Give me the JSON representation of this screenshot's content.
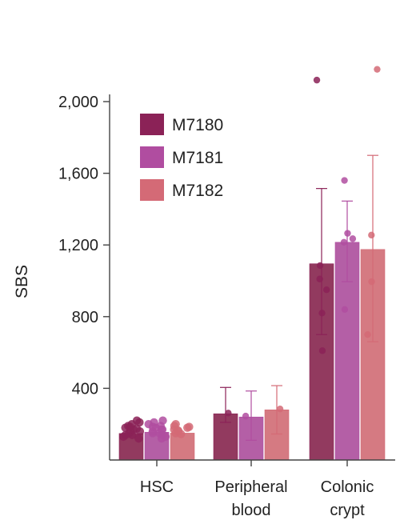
{
  "chart_data": {
    "type": "bar",
    "title": "",
    "xlabel": "",
    "ylabel": "SBS",
    "ylim": [
      0,
      2000
    ],
    "yticks": [
      "400",
      "800",
      "1,200",
      "1,600",
      "2,000"
    ],
    "ytick_values": [
      400,
      800,
      1200,
      1600,
      2000
    ],
    "categories": [
      [
        "HSC"
      ],
      [
        "Peripheral",
        "blood"
      ],
      [
        "Colonic",
        "crypt"
      ]
    ],
    "legend_position": "top-left",
    "series": [
      {
        "name": "M7180",
        "color": "#8b2257",
        "values": [
          148,
          258,
          1095
        ],
        "error_low": [
          null,
          210,
          700
        ],
        "error_high": [
          null,
          405,
          1515
        ],
        "points": [
          [
            120,
            130,
            140,
            150,
            160,
            170,
            180,
            190,
            200,
            210,
            220,
            140,
            160,
            175,
            185
          ],
          [
            262
          ],
          [
            2120,
            1085,
            1010,
            950,
            820,
            610
          ]
        ]
      },
      {
        "name": "M7181",
        "color": "#b04da0",
        "values": [
          155,
          240,
          1215
        ],
        "error_low": [
          null,
          110,
          995
        ],
        "error_high": [
          null,
          385,
          1445
        ],
        "points": [
          [
            120,
            130,
            140,
            150,
            160,
            170,
            180,
            190,
            200,
            210,
            220,
            150,
            170,
            185
          ],
          [
            245
          ],
          [
            1560,
            1265,
            1235,
            1215,
            840
          ]
        ]
      },
      {
        "name": "M7182",
        "color": "#d46a76",
        "values": [
          150,
          280,
          1175
        ],
        "error_low": [
          null,
          145,
          660
        ],
        "error_high": [
          null,
          415,
          1700
        ],
        "points": [
          [
            150,
            160,
            170,
            180,
            190,
            200,
            145,
            165,
            185
          ],
          [
            285
          ],
          [
            2180,
            1255,
            995,
            700
          ]
        ]
      }
    ]
  }
}
